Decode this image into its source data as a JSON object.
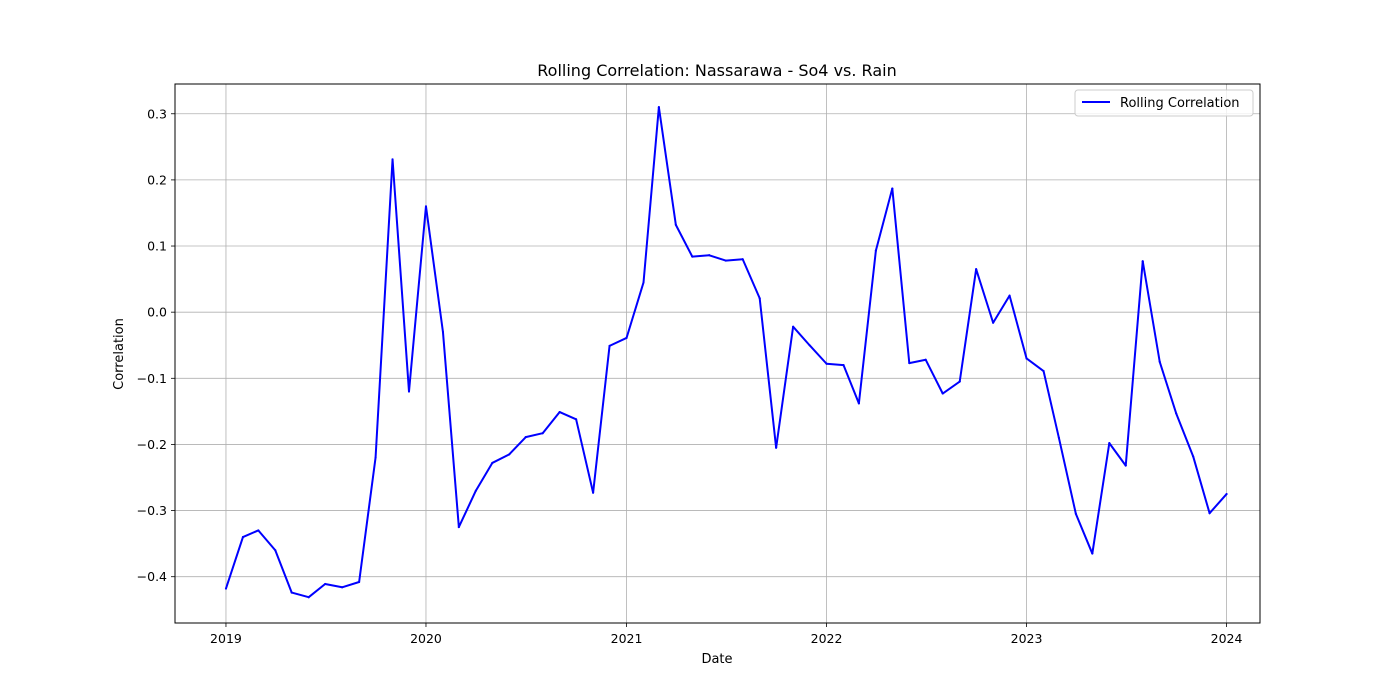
{
  "chart_data": {
    "type": "line",
    "title": "Rolling Correlation: Nassarawa - So4 vs. Rain",
    "xlabel": "Date",
    "ylabel": "Correlation",
    "xlim": [
      "2018-09-30",
      "2024-03-02"
    ],
    "ylim": [
      -0.47,
      0.345
    ],
    "xticks": [
      {
        "value": "2019-01-01",
        "label": "2019"
      },
      {
        "value": "2020-01-01",
        "label": "2020"
      },
      {
        "value": "2021-01-01",
        "label": "2021"
      },
      {
        "value": "2022-01-01",
        "label": "2022"
      },
      {
        "value": "2023-01-01",
        "label": "2023"
      },
      {
        "value": "2024-01-01",
        "label": "2024"
      }
    ],
    "yticks": [
      {
        "value": -0.4,
        "label": "−0.4"
      },
      {
        "value": -0.3,
        "label": "−0.3"
      },
      {
        "value": -0.2,
        "label": "−0.2"
      },
      {
        "value": -0.1,
        "label": "−0.1"
      },
      {
        "value": 0.0,
        "label": "0.0"
      },
      {
        "value": 0.1,
        "label": "0.1"
      },
      {
        "value": 0.2,
        "label": "0.2"
      },
      {
        "value": 0.3,
        "label": "0.3"
      }
    ],
    "grid": true,
    "legend_position": "top-right",
    "series": [
      {
        "name": "Rolling Correlation",
        "color": "#0000ff",
        "x": [
          "2019-01-01",
          "2019-02-01",
          "2019-03-01",
          "2019-04-01",
          "2019-05-01",
          "2019-06-01",
          "2019-07-01",
          "2019-08-01",
          "2019-09-01",
          "2019-10-01",
          "2019-11-01",
          "2019-12-01",
          "2020-01-01",
          "2020-02-01",
          "2020-03-01",
          "2020-04-01",
          "2020-05-01",
          "2020-06-01",
          "2020-07-01",
          "2020-08-01",
          "2020-09-01",
          "2020-10-01",
          "2020-11-01",
          "2020-12-01",
          "2021-01-01",
          "2021-02-01",
          "2021-03-01",
          "2021-04-01",
          "2021-05-01",
          "2021-06-01",
          "2021-07-01",
          "2021-08-01",
          "2021-09-01",
          "2021-10-01",
          "2021-11-01",
          "2021-12-01",
          "2022-01-01",
          "2022-02-01",
          "2022-03-01",
          "2022-04-01",
          "2022-05-01",
          "2022-06-01",
          "2022-07-01",
          "2022-08-01",
          "2022-09-01",
          "2022-10-01",
          "2022-11-01",
          "2022-12-01",
          "2023-01-01",
          "2023-02-01",
          "2023-03-01",
          "2023-04-01",
          "2023-05-01",
          "2023-06-01",
          "2023-07-01",
          "2023-08-01",
          "2023-09-01",
          "2023-10-01",
          "2023-11-01",
          "2023-12-01",
          "2024-01-01"
        ],
        "values": [
          -0.418,
          -0.34,
          -0.33,
          -0.36,
          -0.424,
          -0.431,
          -0.411,
          -0.416,
          -0.408,
          -0.22,
          0.231,
          -0.12,
          0.16,
          -0.03,
          -0.325,
          -0.27,
          -0.228,
          -0.215,
          -0.189,
          -0.183,
          -0.151,
          -0.162,
          -0.273,
          -0.051,
          -0.039,
          0.045,
          0.31,
          0.132,
          0.084,
          0.086,
          0.078,
          0.08,
          0.021,
          -0.205,
          -0.022,
          -0.05,
          -0.078,
          -0.08,
          -0.138,
          0.093,
          0.187,
          -0.077,
          -0.072,
          -0.123,
          -0.105,
          0.065,
          -0.016,
          0.025,
          -0.07,
          -0.089,
          -0.19,
          -0.305,
          -0.365,
          -0.198,
          -0.232,
          0.077,
          -0.075,
          -0.153,
          -0.218,
          -0.304,
          -0.275
        ]
      }
    ]
  }
}
